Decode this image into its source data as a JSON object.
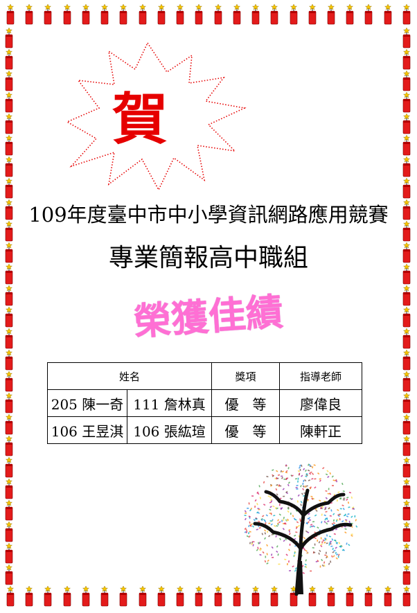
{
  "congrats_char": "賀",
  "title_line1": "109年度臺中市中小學資訊網路應用競賽",
  "title_line2": "專業簡報高中職組",
  "honor_text": "榮獲佳績",
  "table": {
    "headers": {
      "name": "姓名",
      "award": "獎項",
      "teacher": "指導老師"
    },
    "rows": [
      {
        "student1": "205 陳一奇",
        "student2": "111 詹林真",
        "award": "優　等",
        "teacher": "廖偉良"
      },
      {
        "student1": "106 王昱淇",
        "student2": "106 張紘瑄",
        "award": "優　等",
        "teacher": "陳軒正"
      }
    ]
  },
  "colors": {
    "congrats": "#e60000",
    "honor": "#ff6fd4",
    "firecracker": "#e31b1b",
    "spark": "#f5c400"
  },
  "icons": {
    "border": "firecracker-icon",
    "tree": "tree-icon"
  }
}
